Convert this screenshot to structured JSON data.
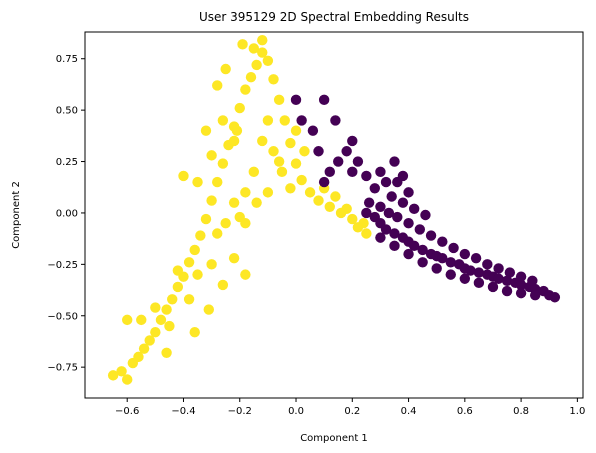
{
  "chart_data": {
    "type": "scatter",
    "title": "User 395129 2D Spectral Embedding Results",
    "xlabel": "Component 1",
    "ylabel": "Component 2",
    "xlim": [
      -0.75,
      1.02
    ],
    "ylim": [
      -0.9,
      0.88
    ],
    "x_ticks": [
      -0.6,
      -0.4,
      -0.2,
      0.0,
      0.2,
      0.4,
      0.6,
      0.8,
      1.0
    ],
    "x_tick_labels": [
      "−0.6",
      "−0.4",
      "−0.2",
      "0.0",
      "0.2",
      "0.4",
      "0.6",
      "0.8",
      "1.0"
    ],
    "y_ticks": [
      -0.75,
      -0.5,
      -0.25,
      0.0,
      0.25,
      0.5,
      0.75
    ],
    "y_tick_labels": [
      "−0.75",
      "−0.50",
      "−0.25",
      "0.00",
      "0.25",
      "0.50",
      "0.75"
    ],
    "grid": false,
    "legend": "none",
    "series": [
      {
        "color": "#fde725",
        "points": [
          [
            -0.65,
            -0.79
          ],
          [
            -0.62,
            -0.77
          ],
          [
            -0.6,
            -0.81
          ],
          [
            -0.58,
            -0.73
          ],
          [
            -0.56,
            -0.7
          ],
          [
            -0.54,
            -0.66
          ],
          [
            -0.52,
            -0.62
          ],
          [
            -0.5,
            -0.58
          ],
          [
            -0.48,
            -0.52
          ],
          [
            -0.46,
            -0.47
          ],
          [
            -0.44,
            -0.42
          ],
          [
            -0.42,
            -0.36
          ],
          [
            -0.4,
            -0.31
          ],
          [
            -0.38,
            -0.24
          ],
          [
            -0.36,
            -0.18
          ],
          [
            -0.34,
            -0.11
          ],
          [
            -0.32,
            -0.03
          ],
          [
            -0.3,
            0.06
          ],
          [
            -0.28,
            0.15
          ],
          [
            -0.26,
            0.24
          ],
          [
            -0.24,
            0.33
          ],
          [
            -0.22,
            0.42
          ],
          [
            -0.2,
            0.51
          ],
          [
            -0.18,
            0.6
          ],
          [
            -0.16,
            0.66
          ],
          [
            -0.14,
            0.72
          ],
          [
            -0.12,
            0.78
          ],
          [
            -0.1,
            0.74
          ],
          [
            -0.08,
            0.65
          ],
          [
            -0.06,
            0.55
          ],
          [
            -0.04,
            0.45
          ],
          [
            -0.02,
            0.34
          ],
          [
            0.0,
            0.24
          ],
          [
            0.02,
            0.16
          ],
          [
            0.05,
            0.1
          ],
          [
            0.08,
            0.06
          ],
          [
            0.12,
            0.03
          ],
          [
            0.16,
            0.0
          ],
          [
            0.2,
            -0.03
          ],
          [
            0.24,
            -0.05
          ],
          [
            -0.55,
            -0.52
          ],
          [
            -0.5,
            -0.46
          ],
          [
            -0.45,
            -0.55
          ],
          [
            -0.42,
            -0.28
          ],
          [
            -0.38,
            -0.42
          ],
          [
            -0.35,
            -0.3
          ],
          [
            -0.3,
            -0.25
          ],
          [
            -0.28,
            -0.1
          ],
          [
            -0.25,
            -0.05
          ],
          [
            -0.22,
            0.05
          ],
          [
            -0.2,
            -0.02
          ],
          [
            -0.18,
            0.1
          ],
          [
            -0.15,
            0.2
          ],
          [
            -0.12,
            0.35
          ],
          [
            -0.1,
            0.45
          ],
          [
            -0.08,
            0.3
          ],
          [
            -0.05,
            0.2
          ],
          [
            -0.02,
            0.12
          ],
          [
            0.0,
            0.4
          ],
          [
            0.03,
            0.3
          ],
          [
            -0.22,
            0.35
          ],
          [
            -0.26,
            0.45
          ],
          [
            -0.3,
            0.28
          ],
          [
            -0.35,
            0.15
          ],
          [
            -0.32,
            0.4
          ],
          [
            -0.4,
            0.18
          ],
          [
            -0.15,
            0.8
          ],
          [
            -0.12,
            0.84
          ],
          [
            -0.19,
            0.82
          ],
          [
            -0.25,
            0.7
          ],
          [
            -0.28,
            0.62
          ],
          [
            -0.21,
            0.4
          ],
          [
            -0.18,
            -0.05
          ],
          [
            -0.14,
            0.05
          ],
          [
            -0.1,
            0.1
          ],
          [
            -0.06,
            0.25
          ],
          [
            -0.6,
            -0.52
          ],
          [
            -0.46,
            -0.68
          ],
          [
            -0.36,
            -0.58
          ],
          [
            -0.31,
            -0.47
          ],
          [
            -0.26,
            -0.35
          ],
          [
            -0.22,
            -0.22
          ],
          [
            -0.18,
            -0.3
          ],
          [
            0.1,
            0.12
          ],
          [
            0.14,
            0.08
          ],
          [
            0.18,
            0.02
          ],
          [
            0.22,
            -0.07
          ],
          [
            0.25,
            -0.1
          ]
        ]
      },
      {
        "color": "#440154",
        "points": [
          [
            0.25,
            0.0
          ],
          [
            0.28,
            -0.02
          ],
          [
            0.3,
            -0.05
          ],
          [
            0.32,
            -0.08
          ],
          [
            0.35,
            -0.1
          ],
          [
            0.38,
            -0.12
          ],
          [
            0.4,
            -0.14
          ],
          [
            0.42,
            -0.16
          ],
          [
            0.45,
            -0.18
          ],
          [
            0.48,
            -0.2
          ],
          [
            0.5,
            -0.21
          ],
          [
            0.52,
            -0.22
          ],
          [
            0.55,
            -0.24
          ],
          [
            0.58,
            -0.25
          ],
          [
            0.6,
            -0.27
          ],
          [
            0.62,
            -0.28
          ],
          [
            0.65,
            -0.29
          ],
          [
            0.68,
            -0.3
          ],
          [
            0.7,
            -0.31
          ],
          [
            0.72,
            -0.32
          ],
          [
            0.75,
            -0.33
          ],
          [
            0.78,
            -0.34
          ],
          [
            0.8,
            -0.35
          ],
          [
            0.83,
            -0.36
          ],
          [
            0.85,
            -0.37
          ],
          [
            0.88,
            -0.38
          ],
          [
            0.9,
            -0.4
          ],
          [
            0.92,
            -0.41
          ],
          [
            0.26,
            0.05
          ],
          [
            0.3,
            0.03
          ],
          [
            0.33,
            0.0
          ],
          [
            0.36,
            -0.02
          ],
          [
            0.4,
            -0.05
          ],
          [
            0.44,
            -0.08
          ],
          [
            0.48,
            -0.11
          ],
          [
            0.52,
            -0.14
          ],
          [
            0.56,
            -0.17
          ],
          [
            0.6,
            -0.2
          ],
          [
            0.64,
            -0.22
          ],
          [
            0.68,
            -0.25
          ],
          [
            0.72,
            -0.27
          ],
          [
            0.76,
            -0.29
          ],
          [
            0.8,
            -0.31
          ],
          [
            0.84,
            -0.33
          ],
          [
            0.3,
            -0.12
          ],
          [
            0.35,
            -0.16
          ],
          [
            0.4,
            -0.2
          ],
          [
            0.45,
            -0.24
          ],
          [
            0.5,
            -0.27
          ],
          [
            0.55,
            -0.3
          ],
          [
            0.6,
            -0.32
          ],
          [
            0.65,
            -0.34
          ],
          [
            0.7,
            -0.36
          ],
          [
            0.75,
            -0.38
          ],
          [
            0.8,
            -0.39
          ],
          [
            0.85,
            -0.4
          ],
          [
            0.34,
            0.08
          ],
          [
            0.38,
            0.05
          ],
          [
            0.42,
            0.02
          ],
          [
            0.46,
            -0.01
          ],
          [
            0.1,
            0.15
          ],
          [
            0.12,
            0.2
          ],
          [
            0.15,
            0.25
          ],
          [
            0.18,
            0.3
          ],
          [
            0.2,
            0.35
          ],
          [
            0.22,
            0.25
          ],
          [
            0.25,
            0.18
          ],
          [
            0.28,
            0.12
          ],
          [
            0.3,
            0.2
          ],
          [
            0.32,
            0.15
          ],
          [
            0.36,
            0.15
          ],
          [
            0.4,
            0.1
          ],
          [
            0.14,
            0.45
          ],
          [
            0.1,
            0.55
          ],
          [
            0.0,
            0.55
          ],
          [
            0.02,
            0.45
          ],
          [
            0.06,
            0.4
          ],
          [
            0.08,
            0.3
          ],
          [
            0.2,
            0.2
          ],
          [
            0.35,
            0.25
          ],
          [
            0.38,
            0.18
          ]
        ]
      }
    ]
  }
}
